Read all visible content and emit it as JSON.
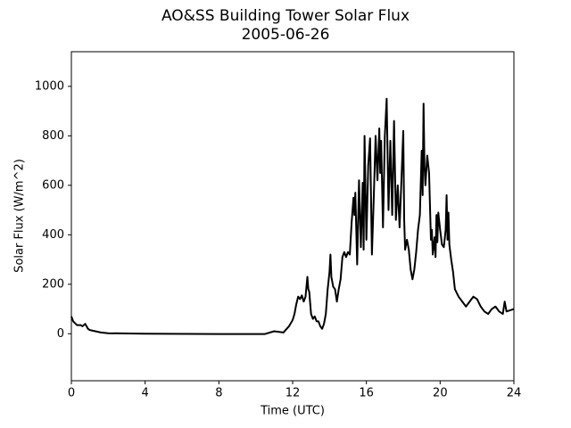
{
  "chart_data": {
    "type": "line",
    "title": "AO&SS Building Tower Solar Flux",
    "subtitle": "2005-06-26",
    "x_label": "Time (UTC)",
    "y_label": "Solar Flux (W/m^2)",
    "xlim": [
      0,
      24
    ],
    "ylim": [
      -190,
      1140
    ],
    "xticks": [
      0,
      4,
      8,
      12,
      16,
      20,
      24
    ],
    "yticks": [
      0,
      200,
      400,
      600,
      800,
      1000
    ],
    "series": [
      {
        "color": "#000000",
        "x": [
          0,
          0.1,
          0.3,
          0.5,
          0.6,
          0.75,
          0.9,
          1.0,
          1.3,
          1.6,
          2,
          4,
          8,
          10.5,
          11,
          11.5,
          11.8,
          12,
          12.1,
          12.2,
          12.3,
          12.4,
          12.5,
          12.6,
          12.7,
          12.8,
          12.85,
          12.9,
          13.0,
          13.1,
          13.2,
          13.3,
          13.4,
          13.5,
          13.6,
          13.7,
          13.8,
          13.9,
          14.0,
          14.05,
          14.1,
          14.2,
          14.3,
          14.4,
          14.5,
          14.6,
          14.7,
          14.8,
          14.9,
          15.0,
          15.1,
          15.2,
          15.3,
          15.35,
          15.4,
          15.5,
          15.6,
          15.65,
          15.7,
          15.8,
          15.85,
          15.9,
          16.0,
          16.1,
          16.2,
          16.3,
          16.4,
          16.5,
          16.6,
          16.7,
          16.75,
          16.8,
          16.9,
          17.0,
          17.1,
          17.2,
          17.3,
          17.4,
          17.5,
          17.6,
          17.7,
          17.8,
          17.9,
          18.0,
          18.05,
          18.1,
          18.2,
          18.3,
          18.4,
          18.5,
          18.6,
          18.7,
          18.8,
          18.9,
          19.0,
          19.05,
          19.1,
          19.15,
          19.2,
          19.3,
          19.4,
          19.5,
          19.55,
          19.6,
          19.7,
          19.75,
          19.8,
          19.85,
          19.9,
          20.0,
          20.1,
          20.2,
          20.3,
          20.35,
          20.4,
          20.45,
          20.5,
          20.6,
          20.7,
          20.8,
          21.0,
          21.2,
          21.4,
          21.6,
          21.8,
          22.0,
          22.2,
          22.4,
          22.6,
          22.8,
          23.0,
          23.2,
          23.4,
          23.5,
          23.6,
          23.8,
          24
        ],
        "values": [
          70,
          50,
          35,
          35,
          30,
          40,
          20,
          15,
          10,
          5,
          2,
          0,
          -1,
          -1,
          10,
          5,
          30,
          55,
          80,
          120,
          150,
          140,
          155,
          130,
          150,
          230,
          180,
          170,
          80,
          60,
          70,
          50,
          50,
          30,
          20,
          40,
          80,
          180,
          250,
          320,
          230,
          190,
          180,
          130,
          180,
          220,
          310,
          330,
          310,
          330,
          320,
          450,
          550,
          480,
          570,
          280,
          620,
          480,
          350,
          610,
          340,
          800,
          380,
          680,
          790,
          320,
          550,
          800,
          620,
          830,
          650,
          780,
          430,
          800,
          950,
          500,
          780,
          480,
          860,
          460,
          600,
          430,
          620,
          820,
          460,
          340,
          380,
          340,
          260,
          220,
          260,
          330,
          420,
          480,
          740,
          560,
          930,
          680,
          600,
          720,
          650,
          380,
          420,
          320,
          390,
          310,
          480,
          370,
          490,
          420,
          360,
          350,
          420,
          560,
          380,
          490,
          360,
          300,
          250,
          180,
          150,
          130,
          110,
          130,
          150,
          140,
          110,
          90,
          80,
          100,
          110,
          90,
          80,
          130,
          90,
          95,
          100
        ]
      }
    ]
  }
}
